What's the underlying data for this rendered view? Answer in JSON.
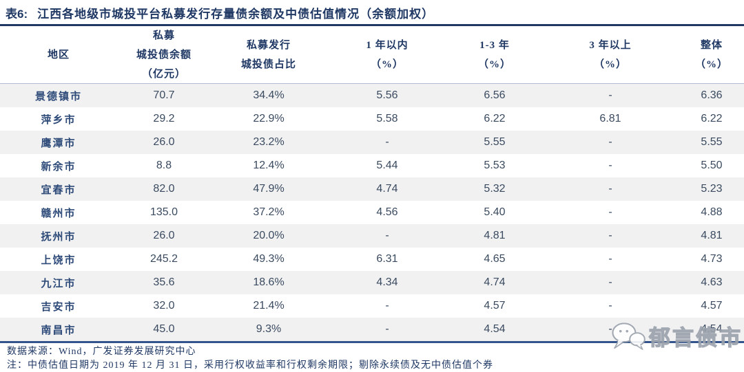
{
  "title": {
    "label": "表6:",
    "text": "江西各地级市城投平台私募发行存量债余额及中债估值情况（余额加权）"
  },
  "header": {
    "col1": [
      "地区"
    ],
    "col2": [
      "私募",
      "城投债余额",
      "（亿元）"
    ],
    "col3": [
      "私募发行",
      "城投债占比"
    ],
    "col4": [
      "1 年以内",
      "（%）"
    ],
    "col5": [
      "1-3 年",
      "（%）"
    ],
    "col6": [
      "3 年以上",
      "（%）"
    ],
    "col7": [
      "整体",
      "（%）"
    ]
  },
  "chart_data": {
    "type": "table",
    "title": "表6: 江西各地级市城投平台私募发行存量债余额及中债估值情况（余额加权）",
    "columns": [
      "地区",
      "私募城投债余额（亿元）",
      "私募发行城投债占比",
      "1年以内（%）",
      "1-3年（%）",
      "3年以上（%）",
      "整体（%）"
    ],
    "rows": [
      [
        "景德镇市",
        "70.7",
        "34.4%",
        "5.56",
        "6.56",
        "-",
        "6.36"
      ],
      [
        "萍乡市",
        "29.2",
        "22.9%",
        "5.58",
        "6.22",
        "6.81",
        "6.22"
      ],
      [
        "鹰潭市",
        "26.0",
        "23.2%",
        "-",
        "5.55",
        "-",
        "5.55"
      ],
      [
        "新余市",
        "8.8",
        "12.4%",
        "5.44",
        "5.53",
        "-",
        "5.50"
      ],
      [
        "宜春市",
        "82.0",
        "47.9%",
        "4.74",
        "5.32",
        "-",
        "5.23"
      ],
      [
        "赣州市",
        "135.0",
        "37.2%",
        "4.56",
        "5.40",
        "-",
        "4.88"
      ],
      [
        "抚州市",
        "26.0",
        "20.0%",
        "-",
        "4.81",
        "-",
        "4.81"
      ],
      [
        "上饶市",
        "245.2",
        "49.3%",
        "6.31",
        "4.65",
        "-",
        "4.73"
      ],
      [
        "九江市",
        "35.6",
        "18.6%",
        "4.34",
        "4.74",
        "-",
        "4.63"
      ],
      [
        "吉安市",
        "32.0",
        "21.4%",
        "-",
        "4.57",
        "-",
        "4.57"
      ],
      [
        "南昌市",
        "45.0",
        "9.3%",
        "-",
        "4.54",
        "-",
        "4.54"
      ]
    ]
  },
  "footer": {
    "source": "数据来源：Wind，广发证券发展研究中心",
    "note": "注：中债估值日期为 2019 年 12 月 31 日，采用行权收益率和行权剩余期限；剔除永续债及无中债估值个券"
  },
  "watermark": {
    "icon": "wechat-chat-bubbles-icon",
    "text": "郁言债市"
  },
  "colors": {
    "title_navy": "#1F3864",
    "region_text": "#2D4A78",
    "number_text": "#3A4A5F",
    "stripe": "#F1F1F2",
    "header_rule": "#AFBBD0",
    "bottom_rule": "#33538C",
    "watermark_gray": "#9AA1AB"
  }
}
